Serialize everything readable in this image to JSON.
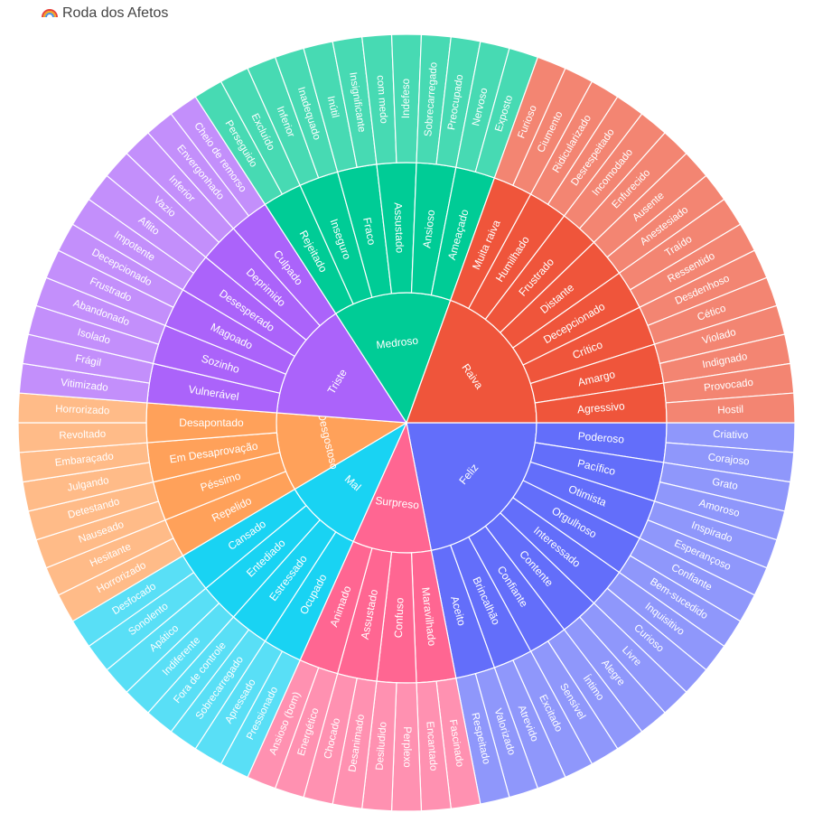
{
  "title": "Roda dos Afetos",
  "title_icon": "rainbow-icon",
  "chart_data": {
    "type": "sunburst",
    "title": "Roda dos Afetos",
    "levels": 3,
    "categories": [
      {
        "name": "Feliz",
        "color": "#636efa",
        "children": [
          {
            "name": "Poderoso",
            "leaves": [
              "Criativo",
              "Corajoso"
            ]
          },
          {
            "name": "Pacífico",
            "leaves": [
              "Grato",
              "Amoroso"
            ]
          },
          {
            "name": "Otimista",
            "leaves": [
              "Inspirado",
              "Esperançoso"
            ]
          },
          {
            "name": "Orgulhoso",
            "leaves": [
              "Confiante",
              "Bem-sucedido"
            ]
          },
          {
            "name": "Interessado",
            "leaves": [
              "Inquisitivo",
              "Curioso"
            ]
          },
          {
            "name": "Contente",
            "leaves": [
              "Livre",
              "Alegre"
            ]
          },
          {
            "name": "Confiante",
            "leaves": [
              "Íntimo",
              "Sensível"
            ]
          },
          {
            "name": "Brincalhão",
            "leaves": [
              "Excitado",
              "Atrevido"
            ]
          },
          {
            "name": "Aceito",
            "leaves": [
              "Valorizado",
              "Respeitado"
            ]
          }
        ]
      },
      {
        "name": "Surpreso",
        "color": "#ff6692",
        "children": [
          {
            "name": "Maravilhado",
            "leaves": [
              "Fascinado",
              "Encantado"
            ]
          },
          {
            "name": "Confuso",
            "leaves": [
              "Perplexo",
              "Desiludido"
            ]
          },
          {
            "name": "Assustado",
            "leaves": [
              "Desanimado",
              "Chocado"
            ]
          },
          {
            "name": "Animado",
            "leaves": [
              "Energético",
              "Ansioso (bom)"
            ]
          }
        ]
      },
      {
        "name": "Mal",
        "color": "#19d3f3",
        "children": [
          {
            "name": "Ocupado",
            "leaves": [
              "Pressionado",
              "Apressado"
            ]
          },
          {
            "name": "Estressado",
            "leaves": [
              "Sobrecarregado",
              "Fora de controle"
            ]
          },
          {
            "name": "Entediado",
            "leaves": [
              "Indiferente",
              "Apático"
            ]
          },
          {
            "name": "Cansado",
            "leaves": [
              "Sonolento",
              "Desfocado"
            ]
          }
        ]
      },
      {
        "name": "Desgostoso",
        "color": "#ffa15a",
        "children": [
          {
            "name": "Repelido",
            "leaves": [
              "Horrorizado",
              "Hesitante"
            ]
          },
          {
            "name": "Péssimo",
            "leaves": [
              "Nauseado",
              "Detestando"
            ]
          },
          {
            "name": "Em Desaprovação",
            "leaves": [
              "Julgando",
              "Embaraçado"
            ]
          },
          {
            "name": "Desapontado",
            "leaves": [
              "Revoltado",
              "Horrorizado"
            ]
          }
        ]
      },
      {
        "name": "Triste",
        "color": "#ab63fa",
        "children": [
          {
            "name": "Vulnerável",
            "leaves": [
              "Vitimizado",
              "Frágil"
            ]
          },
          {
            "name": "Sozinho",
            "leaves": [
              "Isolado",
              "Abandonado"
            ]
          },
          {
            "name": "Magoado",
            "leaves": [
              "Frustrado",
              "Decepcionado"
            ]
          },
          {
            "name": "Desesperado",
            "leaves": [
              "Impotente",
              "Aflito"
            ]
          },
          {
            "name": "Deprimido",
            "leaves": [
              "Vazio",
              "Inferior"
            ]
          },
          {
            "name": "Culpado",
            "leaves": [
              "Envergonhado",
              "Cheio de remorso"
            ]
          }
        ]
      },
      {
        "name": "Medroso",
        "color": "#00cc96",
        "children": [
          {
            "name": "Rejeitado",
            "leaves": [
              "Perseguido",
              "Excluído"
            ]
          },
          {
            "name": "Inseguro",
            "leaves": [
              "Inferior",
              "Inadequado"
            ]
          },
          {
            "name": "Fraco",
            "leaves": [
              "Inútil",
              "Insignificante"
            ]
          },
          {
            "name": "Assustado",
            "leaves": [
              "com medo",
              "Indefeso"
            ]
          },
          {
            "name": "Ansioso",
            "leaves": [
              "Sobrecarregado",
              "Preocupado"
            ]
          },
          {
            "name": "Ameaçado",
            "leaves": [
              "Nervoso",
              "Exposto"
            ]
          }
        ]
      },
      {
        "name": "Raiva",
        "color": "#ef553b",
        "children": [
          {
            "name": "Muita raiva",
            "leaves": [
              "Furioso",
              "Ciumento"
            ]
          },
          {
            "name": "Humilhado",
            "leaves": [
              "Ridicularizado",
              "Desrespeitado"
            ]
          },
          {
            "name": "Frustrado",
            "leaves": [
              "Incomodado",
              "Enfurecido"
            ]
          },
          {
            "name": "Distante",
            "leaves": [
              "Ausente",
              "Anestesiado"
            ]
          },
          {
            "name": "Decepcionado",
            "leaves": [
              "Traído",
              "Ressentido"
            ]
          },
          {
            "name": "Crítico",
            "leaves": [
              "Desdenhoso",
              "Cético"
            ]
          },
          {
            "name": "Amargo",
            "leaves": [
              "Violado",
              "Indignado"
            ]
          },
          {
            "name": "Agressivo",
            "leaves": [
              "Provocado",
              "Hostil"
            ]
          }
        ]
      }
    ]
  }
}
